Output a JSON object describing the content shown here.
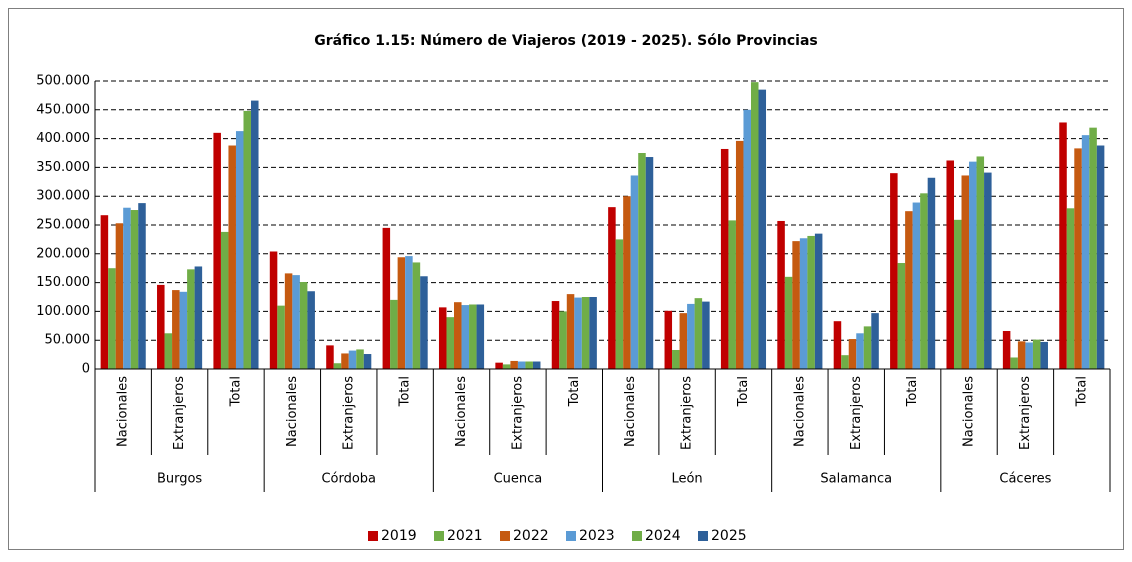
{
  "chart_data": {
    "type": "bar",
    "title": "Gráfico 1.15: Número de Viajeros (2019 - 2025). Sólo Provincias",
    "categories": [
      "Nacionales",
      "Extranjeros",
      "Total",
      "Nacionales",
      "Extranjeros",
      "Total",
      "Nacionales",
      "Extranjeros",
      "Total",
      "Nacionales",
      "Extranjeros",
      "Total",
      "Nacionales",
      "Extranjeros",
      "Total",
      "Nacionales",
      "Extranjeros",
      "Total"
    ],
    "groups": [
      "Burgos",
      "Córdoba",
      "Cuenca",
      "León",
      "Salamanca",
      "Cáceres"
    ],
    "series": [
      {
        "name": "2019",
        "color": "#c00000",
        "values": [
          267000,
          146000,
          410000,
          204000,
          41000,
          245000,
          107000,
          11000,
          118000,
          281000,
          101000,
          382000,
          257000,
          83000,
          340000,
          362000,
          66000,
          428000
        ]
      },
      {
        "name": "2021",
        "color": "#70ad47",
        "values": [
          175000,
          62000,
          238000,
          110000,
          10000,
          120000,
          90000,
          8000,
          100000,
          225000,
          33000,
          258000,
          160000,
          24000,
          184000,
          259000,
          20000,
          279000
        ]
      },
      {
        "name": "2022",
        "color": "#c55a11",
        "values": [
          253000,
          137000,
          388000,
          166000,
          27000,
          194000,
          116000,
          14000,
          130000,
          300000,
          97000,
          396000,
          222000,
          52000,
          274000,
          336000,
          48000,
          383000
        ]
      },
      {
        "name": "2023",
        "color": "#5b9bd5",
        "values": [
          280000,
          134000,
          413000,
          163000,
          32000,
          196000,
          111000,
          13000,
          124000,
          336000,
          113000,
          450000,
          227000,
          62000,
          289000,
          360000,
          46000,
          406000
        ]
      },
      {
        "name": "2024",
        "color": "#70ad47",
        "values": [
          276000,
          173000,
          448000,
          151000,
          34000,
          185000,
          112000,
          13000,
          125000,
          375000,
          123000,
          498000,
          231000,
          74000,
          305000,
          369000,
          51000,
          419000
        ]
      },
      {
        "name": "2025",
        "color": "#2e6099",
        "values": [
          288000,
          178000,
          466000,
          135000,
          26000,
          161000,
          112000,
          13000,
          125000,
          368000,
          117000,
          485000,
          235000,
          97000,
          332000,
          341000,
          47000,
          388000
        ]
      }
    ],
    "ylim": [
      0,
      500000
    ],
    "yticks": [
      0,
      {
        "value": 50000,
        "label": "50.000"
      },
      {
        "value": 100000,
        "label": "100.000"
      },
      {
        "value": 150000,
        "label": "150.000"
      },
      {
        "value": 200000,
        "label": "200.000"
      },
      {
        "value": 250000,
        "label": "250.000"
      },
      {
        "value": 300000,
        "label": "300.000"
      },
      {
        "value": 350000,
        "label": "350.000"
      },
      {
        "value": 400000,
        "label": "400.000"
      },
      {
        "value": 450000,
        "label": "450.000"
      },
      {
        "value": 500000,
        "label": "500.000"
      }
    ],
    "grid": true,
    "legend": "bottom"
  }
}
